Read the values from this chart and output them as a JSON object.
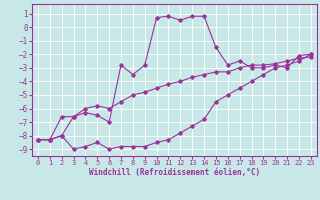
{
  "xlabel": "Windchill (Refroidissement éolien,°C)",
  "bg_color": "#c8e8e8",
  "grid_color": "#ffffff",
  "line_color": "#993399",
  "xlim": [
    -0.5,
    23.5
  ],
  "ylim": [
    -9.5,
    1.7
  ],
  "yticks": [
    1,
    0,
    -1,
    -2,
    -3,
    -4,
    -5,
    -6,
    -7,
    -8,
    -9
  ],
  "xticks": [
    0,
    1,
    2,
    3,
    4,
    5,
    6,
    7,
    8,
    9,
    10,
    11,
    12,
    13,
    14,
    15,
    16,
    17,
    18,
    19,
    20,
    21,
    22,
    23
  ],
  "series1_x": [
    0,
    1,
    2,
    3,
    4,
    5,
    6,
    7,
    8,
    9,
    10,
    11,
    12,
    13,
    14,
    15,
    16,
    17,
    18,
    19,
    20,
    21,
    22,
    23
  ],
  "series1_y": [
    -8.3,
    -8.3,
    -8.0,
    -9.0,
    -8.8,
    -8.5,
    -9.0,
    -8.8,
    -8.8,
    -8.8,
    -8.5,
    -8.3,
    -7.8,
    -7.3,
    -6.8,
    -5.5,
    -5.0,
    -4.5,
    -4.0,
    -3.5,
    -3.0,
    -2.8,
    -2.5,
    -2.0
  ],
  "series2_x": [
    0,
    1,
    2,
    3,
    4,
    5,
    6,
    7,
    8,
    9,
    10,
    11,
    12,
    13,
    14,
    15,
    16,
    17,
    18,
    19,
    20,
    21,
    22,
    23
  ],
  "series2_y": [
    -8.3,
    -8.3,
    -6.6,
    -6.6,
    -6.0,
    -5.8,
    -6.0,
    -5.5,
    -5.0,
    -4.8,
    -4.5,
    -4.2,
    -4.0,
    -3.7,
    -3.5,
    -3.3,
    -3.3,
    -3.0,
    -2.8,
    -2.8,
    -2.7,
    -2.5,
    -2.3,
    -2.2
  ],
  "series3_x": [
    0,
    1,
    2,
    3,
    4,
    5,
    6,
    7,
    8,
    9,
    10,
    11,
    12,
    13,
    14,
    15,
    16,
    17,
    18,
    19,
    20,
    21,
    22,
    23
  ],
  "series3_y": [
    -8.3,
    -8.3,
    -8.0,
    -6.6,
    -6.3,
    -6.5,
    -7.0,
    -2.8,
    -3.5,
    -2.8,
    0.7,
    0.8,
    0.5,
    0.8,
    0.8,
    -1.5,
    -2.8,
    -2.5,
    -3.0,
    -3.0,
    -2.8,
    -3.0,
    -2.1,
    -2.0
  ],
  "marker": "D",
  "markersize": 1.8,
  "linewidth": 0.8,
  "tick_fontsize": 5.0,
  "xlabel_fontsize": 5.5
}
